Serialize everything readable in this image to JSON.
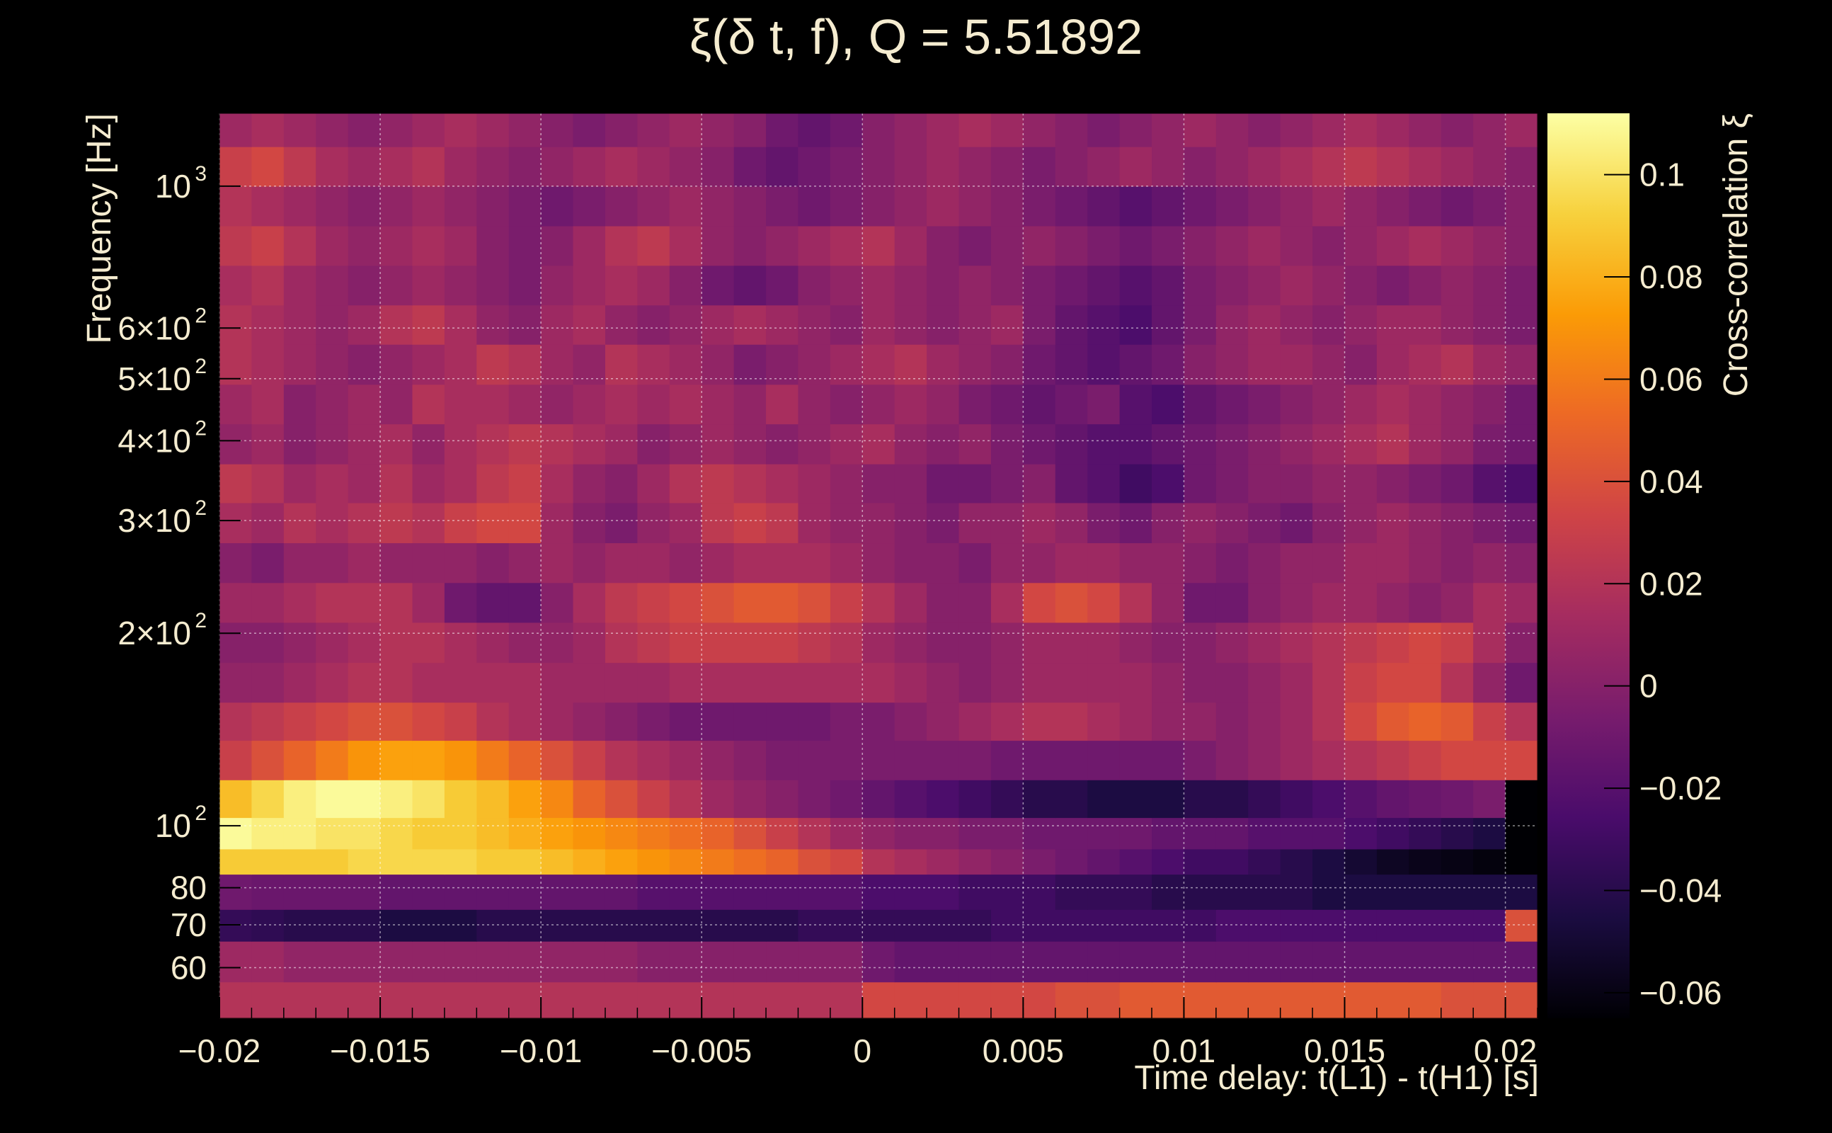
{
  "chart_data": {
    "type": "heatmap",
    "title": "ξ(δ t, f), Q = 5.51892",
    "xlabel": "Time delay: t(L1) - t(H1) [s]",
    "ylabel": "Frequency [Hz]",
    "zlabel": "Cross-correlation ξ",
    "xlim": [
      -0.02,
      0.021
    ],
    "ylim": [
      50,
      1300
    ],
    "yscale": "log",
    "zlim": [
      -0.065,
      0.112
    ],
    "grid": true,
    "colormap": "inferno",
    "colormap_stops": [
      "#000004",
      "#1b0c41",
      "#4a0c6b",
      "#781c6d",
      "#a52c60",
      "#cf4446",
      "#ed6925",
      "#fb9b06",
      "#f7d13d",
      "#fcffa4"
    ],
    "x_ticks": [
      -0.02,
      -0.015,
      -0.01,
      -0.005,
      0,
      0.005,
      0.01,
      0.015,
      0.02
    ],
    "x_tick_labels": [
      "−0.02",
      "−0.015",
      "−0.01",
      "−0.005",
      "0",
      "0.005",
      "0.01",
      "0.015",
      "0.02"
    ],
    "y_ticks": [
      {
        "value": 60,
        "base": "60",
        "exp": ""
      },
      {
        "value": 70,
        "base": "70",
        "exp": ""
      },
      {
        "value": 80,
        "base": "80",
        "exp": ""
      },
      {
        "value": 100,
        "base": "10",
        "exp": "2"
      },
      {
        "value": 200,
        "base": "2×10",
        "exp": "2"
      },
      {
        "value": 300,
        "base": "3×10",
        "exp": "2"
      },
      {
        "value": 400,
        "base": "4×10",
        "exp": "2"
      },
      {
        "value": 500,
        "base": "5×10",
        "exp": "2"
      },
      {
        "value": 600,
        "base": "6×10",
        "exp": "2"
      },
      {
        "value": 1000,
        "base": "10",
        "exp": "3"
      }
    ],
    "z_ticks": [
      0.1,
      0.08,
      0.06,
      0.04,
      0.02,
      0,
      -0.02,
      -0.04,
      -0.06
    ],
    "z_tick_labels": [
      "0.1",
      "0.08",
      "0.06",
      "0.04",
      "0.02",
      "0",
      "−0.02",
      "−0.04",
      "−0.06"
    ],
    "x_bins": 41,
    "y_bin_edges": [
      50,
      57,
      66,
      74,
      84,
      92,
      103,
      118,
      136,
      156,
      180,
      208,
      240,
      277,
      320,
      368,
      425,
      490,
      566,
      652,
      752,
      867,
      1000,
      1153,
      1300
    ],
    "rows": [
      [
        0.02,
        0.02,
        0.02,
        0.02,
        0.02,
        0.02,
        0.02,
        0.02,
        0.02,
        0.02,
        0.02,
        0.02,
        0.02,
        0.02,
        0.02,
        0.02,
        0.02,
        0.02,
        0.02,
        0.02,
        0.035,
        0.035,
        0.035,
        0.035,
        0.035,
        0.035,
        0.04,
        0.04,
        0.045,
        0.045,
        0.045,
        0.045,
        0.045,
        0.045,
        0.045,
        0.045,
        0.045,
        0.045,
        0.04,
        0.04,
        0.04
      ],
      [
        0.01,
        0.01,
        0.005,
        0.005,
        0.005,
        0.005,
        0.005,
        0.005,
        0.005,
        0.005,
        0.005,
        0.005,
        0.005,
        0.0,
        0.0,
        0.0,
        0.0,
        0.0,
        0.0,
        0.0,
        -0.01,
        -0.015,
        -0.015,
        -0.015,
        -0.015,
        -0.015,
        -0.015,
        -0.015,
        -0.015,
        -0.015,
        -0.015,
        -0.015,
        -0.015,
        -0.015,
        -0.015,
        -0.015,
        -0.015,
        -0.015,
        -0.015,
        -0.015,
        -0.015
      ],
      [
        -0.035,
        -0.037,
        -0.04,
        -0.04,
        -0.04,
        -0.045,
        -0.045,
        -0.045,
        -0.04,
        -0.04,
        -0.04,
        -0.04,
        -0.04,
        -0.04,
        -0.04,
        -0.04,
        -0.04,
        -0.04,
        -0.035,
        -0.035,
        -0.035,
        -0.035,
        -0.035,
        -0.035,
        -0.03,
        -0.03,
        -0.03,
        -0.03,
        -0.03,
        -0.03,
        -0.03,
        -0.025,
        -0.025,
        -0.025,
        -0.025,
        -0.025,
        -0.025,
        -0.025,
        -0.025,
        -0.025,
        0.04
      ],
      [
        -0.01,
        -0.012,
        -0.012,
        -0.012,
        -0.012,
        -0.015,
        -0.015,
        -0.015,
        -0.015,
        -0.015,
        -0.015,
        -0.015,
        -0.015,
        -0.02,
        -0.02,
        -0.02,
        -0.02,
        -0.02,
        -0.02,
        -0.02,
        -0.025,
        -0.025,
        -0.025,
        -0.03,
        -0.03,
        -0.03,
        -0.035,
        -0.035,
        -0.035,
        -0.04,
        -0.04,
        -0.04,
        -0.04,
        -0.04,
        -0.045,
        -0.045,
        -0.045,
        -0.045,
        -0.045,
        -0.045,
        -0.045
      ],
      [
        0.09,
        0.09,
        0.09,
        0.09,
        0.095,
        0.095,
        0.095,
        0.095,
        0.09,
        0.09,
        0.085,
        0.08,
        0.075,
        0.07,
        0.065,
        0.06,
        0.055,
        0.05,
        0.04,
        0.035,
        0.02,
        0.015,
        0.01,
        0.005,
        0.0,
        -0.005,
        -0.01,
        -0.015,
        -0.02,
        -0.025,
        -0.03,
        -0.03,
        -0.035,
        -0.04,
        -0.045,
        -0.05,
        -0.055,
        -0.058,
        -0.06,
        -0.062,
        -0.065
      ],
      [
        0.11,
        0.105,
        0.105,
        0.1,
        0.1,
        0.095,
        0.09,
        0.09,
        0.085,
        0.08,
        0.075,
        0.07,
        0.065,
        0.06,
        0.055,
        0.05,
        0.04,
        0.03,
        0.02,
        0.01,
        0.005,
        0.0,
        0.0,
        -0.005,
        -0.005,
        -0.01,
        -0.01,
        -0.01,
        -0.01,
        -0.015,
        -0.015,
        -0.015,
        -0.02,
        -0.02,
        -0.02,
        -0.025,
        -0.03,
        -0.035,
        -0.04,
        -0.045,
        -0.065
      ],
      [
        0.085,
        0.095,
        0.105,
        0.11,
        0.11,
        0.105,
        0.1,
        0.09,
        0.085,
        0.075,
        0.065,
        0.05,
        0.04,
        0.03,
        0.02,
        0.01,
        0.005,
        0.0,
        -0.005,
        -0.01,
        -0.015,
        -0.02,
        -0.025,
        -0.03,
        -0.035,
        -0.04,
        -0.04,
        -0.045,
        -0.045,
        -0.045,
        -0.04,
        -0.04,
        -0.035,
        -0.03,
        -0.025,
        -0.02,
        -0.015,
        -0.012,
        -0.01,
        -0.005,
        -0.065
      ],
      [
        0.03,
        0.04,
        0.05,
        0.06,
        0.07,
        0.075,
        0.075,
        0.07,
        0.06,
        0.05,
        0.04,
        0.03,
        0.02,
        0.015,
        0.01,
        0.005,
        0.0,
        -0.005,
        -0.005,
        -0.005,
        -0.005,
        -0.005,
        -0.005,
        -0.005,
        -0.01,
        -0.01,
        -0.01,
        -0.01,
        -0.01,
        -0.01,
        -0.005,
        0.0,
        0.005,
        0.01,
        0.015,
        0.02,
        0.025,
        0.03,
        0.035,
        0.035,
        0.035
      ],
      [
        0.02,
        0.025,
        0.03,
        0.035,
        0.04,
        0.04,
        0.035,
        0.03,
        0.02,
        0.015,
        0.01,
        0.005,
        0.0,
        -0.005,
        -0.01,
        -0.01,
        -0.01,
        -0.01,
        -0.01,
        -0.005,
        -0.005,
        0.0,
        0.005,
        0.01,
        0.015,
        0.02,
        0.02,
        0.015,
        0.01,
        0.005,
        0.005,
        0.0,
        0.005,
        0.01,
        0.02,
        0.035,
        0.045,
        0.05,
        0.045,
        0.03,
        0.02
      ],
      [
        0.005,
        0.005,
        0.01,
        0.015,
        0.02,
        0.02,
        0.015,
        0.015,
        0.015,
        0.015,
        0.01,
        0.01,
        0.01,
        0.01,
        0.015,
        0.015,
        0.015,
        0.015,
        0.015,
        0.015,
        0.015,
        0.01,
        0.005,
        0.0,
        0.005,
        0.01,
        0.01,
        0.01,
        0.01,
        0.005,
        0.0,
        0.0,
        0.005,
        0.01,
        0.02,
        0.03,
        0.035,
        0.035,
        0.02,
        0.005,
        -0.01
      ],
      [
        0.0,
        0.0,
        0.005,
        0.01,
        0.015,
        0.02,
        0.02,
        0.015,
        0.01,
        0.005,
        0.005,
        0.01,
        0.02,
        0.025,
        0.03,
        0.03,
        0.03,
        0.03,
        0.025,
        0.02,
        0.01,
        0.005,
        0.0,
        0.0,
        0.005,
        0.01,
        0.01,
        0.01,
        0.005,
        0.0,
        0.0,
        0.005,
        0.01,
        0.015,
        0.02,
        0.025,
        0.03,
        0.035,
        0.03,
        0.015,
        0.0
      ],
      [
        0.01,
        0.01,
        0.015,
        0.02,
        0.02,
        0.02,
        0.01,
        -0.01,
        -0.015,
        -0.015,
        0.0,
        0.015,
        0.025,
        0.03,
        0.035,
        0.04,
        0.045,
        0.045,
        0.04,
        0.03,
        0.02,
        0.01,
        0.0,
        0.0,
        0.015,
        0.035,
        0.04,
        0.035,
        0.02,
        0.005,
        -0.01,
        -0.01,
        0.0,
        0.005,
        0.01,
        0.01,
        0.005,
        0.0,
        0.005,
        0.015,
        0.01
      ],
      [
        0.0,
        -0.005,
        0.005,
        0.005,
        0.01,
        0.005,
        0.005,
        0.005,
        0.0,
        0.005,
        0.01,
        0.005,
        0.01,
        0.01,
        0.005,
        0.01,
        0.015,
        0.015,
        0.015,
        0.01,
        0.005,
        0.0,
        0.0,
        -0.005,
        0.005,
        0.005,
        0.01,
        0.01,
        0.005,
        0.005,
        0.0,
        -0.005,
        0.0,
        0.005,
        0.005,
        0.01,
        0.01,
        0.005,
        0.0,
        0.005,
        0.0
      ],
      [
        0.015,
        0.01,
        0.02,
        0.015,
        0.02,
        0.025,
        0.02,
        0.03,
        0.035,
        0.035,
        0.01,
        0.0,
        -0.005,
        0.005,
        0.01,
        0.025,
        0.03,
        0.025,
        0.01,
        0.005,
        0.005,
        0.0,
        -0.005,
        0.005,
        0.005,
        0.01,
        0.005,
        -0.005,
        -0.01,
        0.0,
        0.005,
        0.0,
        -0.005,
        -0.01,
        0.0,
        0.005,
        0.01,
        0.005,
        0.0,
        -0.005,
        -0.01
      ],
      [
        0.025,
        0.02,
        0.01,
        0.015,
        0.01,
        0.02,
        0.01,
        0.015,
        0.025,
        0.03,
        0.015,
        0.005,
        0.0,
        0.01,
        0.02,
        0.025,
        0.02,
        0.015,
        0.01,
        0.005,
        0.0,
        0.0,
        -0.01,
        -0.01,
        -0.005,
        0.0,
        -0.015,
        -0.02,
        -0.03,
        -0.025,
        -0.01,
        -0.005,
        0.0,
        0.0,
        0.005,
        0.005,
        0.0,
        -0.005,
        -0.01,
        -0.02,
        -0.025
      ],
      [
        0.005,
        0.01,
        0.0,
        0.005,
        0.01,
        0.015,
        0.005,
        0.015,
        0.02,
        0.025,
        0.02,
        0.015,
        0.01,
        0.0,
        0.005,
        0.01,
        0.005,
        0.0,
        0.005,
        0.01,
        0.015,
        0.005,
        0.0,
        0.005,
        -0.005,
        -0.01,
        -0.015,
        -0.02,
        -0.02,
        -0.015,
        -0.01,
        -0.005,
        0.0,
        0.005,
        0.01,
        0.015,
        0.02,
        0.01,
        0.005,
        -0.005,
        -0.01
      ],
      [
        0.01,
        0.015,
        0.0,
        0.005,
        0.01,
        0.005,
        0.02,
        0.015,
        0.015,
        0.01,
        0.005,
        0.01,
        0.015,
        0.01,
        0.015,
        0.01,
        0.005,
        0.015,
        0.005,
        0.0,
        0.005,
        0.01,
        0.005,
        -0.005,
        -0.01,
        -0.015,
        -0.01,
        -0.005,
        -0.02,
        -0.025,
        -0.015,
        -0.01,
        -0.005,
        0.0,
        0.005,
        0.01,
        0.015,
        0.01,
        0.005,
        0.0,
        -0.01
      ],
      [
        0.02,
        0.015,
        0.01,
        0.005,
        0.0,
        0.005,
        0.01,
        0.015,
        0.025,
        0.02,
        0.01,
        0.005,
        0.02,
        0.015,
        0.01,
        0.005,
        -0.005,
        0.0,
        0.005,
        0.01,
        0.015,
        0.02,
        0.01,
        0.005,
        0.0,
        -0.01,
        -0.015,
        -0.02,
        -0.015,
        -0.01,
        0.0,
        0.005,
        0.01,
        0.01,
        0.005,
        0.0,
        0.01,
        0.015,
        0.02,
        0.01,
        0.005
      ],
      [
        0.02,
        0.015,
        0.01,
        0.005,
        0.01,
        0.02,
        0.025,
        0.015,
        0.005,
        0.0,
        0.01,
        0.015,
        0.005,
        0.0,
        0.005,
        0.01,
        0.015,
        0.01,
        0.005,
        0.0,
        0.01,
        0.005,
        0.0,
        0.005,
        0.01,
        -0.005,
        -0.015,
        -0.02,
        -0.025,
        -0.015,
        -0.005,
        0.005,
        0.01,
        0.005,
        0.0,
        0.005,
        0.01,
        0.01,
        0.005,
        0.0,
        -0.005
      ],
      [
        0.015,
        0.02,
        0.01,
        0.005,
        0.0,
        0.005,
        0.01,
        0.005,
        0.0,
        -0.005,
        0.005,
        0.01,
        0.015,
        0.01,
        0.0,
        -0.01,
        -0.015,
        -0.01,
        0.0,
        0.005,
        0.01,
        0.005,
        0.0,
        0.005,
        0.0,
        -0.005,
        -0.01,
        -0.015,
        -0.02,
        -0.015,
        -0.005,
        0.0,
        0.005,
        0.01,
        0.005,
        0.0,
        -0.005,
        0.0,
        0.005,
        0.0,
        -0.005
      ],
      [
        0.025,
        0.03,
        0.02,
        0.01,
        0.005,
        0.01,
        0.015,
        0.01,
        0.0,
        -0.005,
        0.0,
        0.01,
        0.02,
        0.025,
        0.015,
        0.005,
        0.0,
        0.005,
        0.01,
        0.015,
        0.02,
        0.01,
        0.0,
        -0.005,
        0.0,
        0.005,
        0.0,
        -0.005,
        -0.01,
        -0.005,
        0.0,
        0.005,
        0.01,
        0.005,
        0.0,
        0.005,
        0.01,
        0.015,
        0.01,
        0.005,
        0.0
      ],
      [
        0.02,
        0.015,
        0.01,
        0.005,
        0.0,
        0.005,
        0.01,
        0.005,
        0.0,
        -0.005,
        -0.01,
        -0.005,
        0.0,
        0.005,
        0.01,
        0.005,
        0.0,
        -0.005,
        -0.01,
        -0.005,
        0.0,
        0.005,
        0.01,
        0.005,
        0.0,
        -0.005,
        -0.01,
        -0.015,
        -0.02,
        -0.015,
        -0.01,
        -0.005,
        0.0,
        0.005,
        0.01,
        0.005,
        0.0,
        -0.005,
        -0.01,
        -0.005,
        0.0
      ],
      [
        0.03,
        0.035,
        0.025,
        0.015,
        0.01,
        0.015,
        0.02,
        0.01,
        0.005,
        0.0,
        0.005,
        0.01,
        0.015,
        0.01,
        0.005,
        0.0,
        -0.01,
        -0.015,
        -0.01,
        -0.005,
        0.0,
        0.005,
        0.01,
        0.005,
        0.0,
        -0.005,
        0.0,
        0.005,
        0.01,
        0.005,
        0.0,
        0.005,
        0.01,
        0.015,
        0.02,
        0.025,
        0.02,
        0.015,
        0.01,
        0.005,
        0.0
      ],
      [
        0.01,
        0.015,
        0.01,
        0.005,
        0.0,
        0.005,
        0.01,
        0.015,
        0.01,
        0.005,
        0.0,
        -0.005,
        0.0,
        0.005,
        0.01,
        0.005,
        0.0,
        -0.01,
        -0.015,
        -0.01,
        0.0,
        0.005,
        0.01,
        0.015,
        0.01,
        0.005,
        0.0,
        -0.005,
        0.0,
        0.005,
        0.01,
        0.005,
        0.0,
        0.005,
        0.01,
        0.015,
        0.01,
        0.005,
        0.0,
        0.005,
        0.01
      ]
    ]
  }
}
